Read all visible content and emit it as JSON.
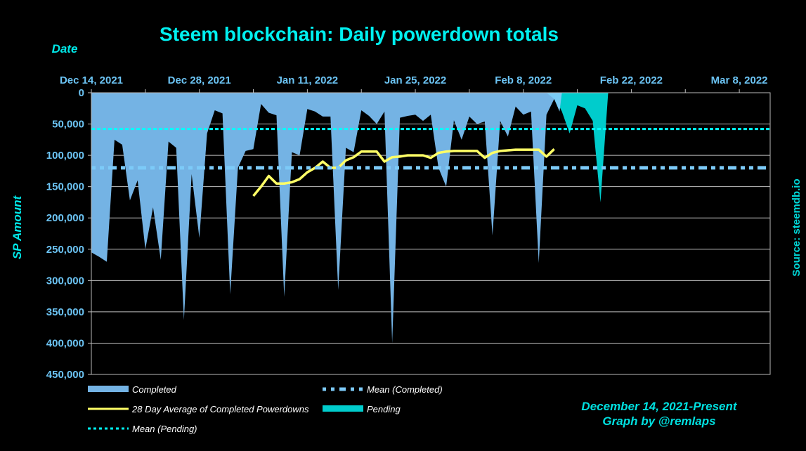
{
  "chart_data": {
    "type": "area",
    "title": "Steem blockchain: Daily powerdown totals",
    "xlabel": "Date",
    "ylabel": "SP Amount",
    "source": "Source: steemdb.io",
    "credit_lines": [
      "December 14, 2021-Present",
      "Graph by @remlaps"
    ],
    "y_inverted": true,
    "ylim": [
      0,
      450000
    ],
    "y_ticks": [
      0,
      50000,
      100000,
      150000,
      200000,
      250000,
      300000,
      350000,
      400000,
      450000
    ],
    "y_tick_labels": [
      "0",
      "50,000",
      "100,000",
      "150,000",
      "200,000",
      "250,000",
      "300,000",
      "350,000",
      "400,000",
      "450,000"
    ],
    "x_start": "2021-12-14",
    "x_range_days": [
      0,
      88
    ],
    "x_ticks_days": [
      0,
      14,
      28,
      42,
      56,
      70,
      84
    ],
    "x_tick_labels": [
      "Dec 14, 2021",
      "Dec 28, 2021",
      "Jan 11, 2022",
      "Jan 25, 2022",
      "Feb 8, 2022",
      "Feb 22, 2022",
      "Mar 8, 2022"
    ],
    "grid": true,
    "legend_position": "bottom",
    "colors": {
      "completed": "#74b3e4",
      "pending": "#00cccc",
      "overlap": "#7accf6",
      "avg28": "#ffff66",
      "mean_completed": "#7ccaf8",
      "mean_pending": "#00ffff",
      "grid": "#c0c0c0",
      "tick_label": "#6cc4f4"
    },
    "series": [
      {
        "name": "Completed",
        "kind": "area",
        "x_days": [
          0,
          1,
          2,
          3,
          4,
          5,
          6,
          7,
          8,
          9,
          10,
          11,
          12,
          13,
          14,
          15,
          16,
          17,
          18,
          19,
          20,
          21,
          22,
          23,
          24,
          25,
          26,
          27,
          28,
          29,
          30,
          31,
          32,
          33,
          34,
          35,
          36,
          37,
          38,
          39,
          40,
          41,
          42,
          43,
          44,
          45,
          46,
          47,
          48,
          49,
          50,
          51,
          52,
          53,
          54,
          55,
          56,
          57,
          58,
          59,
          60,
          61,
          62,
          63,
          64,
          65,
          66,
          67,
          68,
          69,
          70
        ],
        "values": [
          255000,
          262000,
          270000,
          75000,
          83000,
          172000,
          140000,
          250000,
          183000,
          267000,
          78000,
          88000,
          363000,
          130000,
          232000,
          65000,
          28000,
          33000,
          322000,
          120000,
          93000,
          90000,
          18000,
          32000,
          36000,
          326000,
          95000,
          100000,
          26000,
          30000,
          38000,
          38000,
          315000,
          88000,
          95000,
          28000,
          37000,
          50000,
          30000,
          400000,
          40000,
          37000,
          35000,
          45000,
          35000,
          120000,
          150000,
          44000,
          75000,
          38000,
          50000,
          46000,
          228000,
          45000,
          70000,
          22000,
          35000,
          30000,
          272000,
          35000,
          10000,
          null,
          null,
          null,
          null,
          null,
          null,
          null,
          null,
          null,
          null
        ]
      },
      {
        "name": "Pending",
        "kind": "area",
        "x_days": [
          60,
          61,
          62,
          63,
          64,
          65,
          66,
          67,
          68
        ],
        "values": [
          5000,
          30000,
          65000,
          20000,
          25000,
          45000,
          175000,
          0,
          0
        ]
      },
      {
        "name": "28 Day Average of Completed Powerdowns",
        "kind": "line",
        "x_days": [
          21,
          22,
          23,
          24,
          25,
          26,
          27,
          28,
          29,
          30,
          31,
          32,
          33,
          34,
          35,
          36,
          37,
          38,
          39,
          40,
          41,
          42,
          43,
          44,
          45,
          46,
          47,
          48,
          49,
          50,
          51,
          52,
          53,
          54,
          55,
          56,
          57,
          58,
          59,
          60
        ],
        "values": [
          165000,
          150000,
          133000,
          145000,
          145000,
          143000,
          138000,
          127000,
          120000,
          110000,
          120000,
          120000,
          108000,
          103000,
          94000,
          94000,
          94000,
          110000,
          103000,
          102000,
          100000,
          100000,
          100000,
          104000,
          96000,
          94000,
          93000,
          93000,
          93000,
          93000,
          104000,
          96000,
          93000,
          92000,
          91000,
          91000,
          91000,
          91000,
          102000,
          90000
        ]
      },
      {
        "name": "Mean (Completed)",
        "kind": "hline",
        "value": 120000
      },
      {
        "name": "Mean (Pending)",
        "kind": "hline",
        "value": 58000
      }
    ],
    "legend": [
      {
        "label": "Completed",
        "style": "area",
        "key": "completed"
      },
      {
        "label": "Mean (Completed)",
        "style": "dash-dot",
        "key": "mean_completed"
      },
      {
        "label": "28 Day Average of Completed Powerdowns",
        "style": "line",
        "key": "avg28"
      },
      {
        "label": "Pending",
        "style": "area",
        "key": "pending"
      },
      {
        "label": "Mean (Pending)",
        "style": "dotted",
        "key": "mean_pending"
      }
    ]
  }
}
